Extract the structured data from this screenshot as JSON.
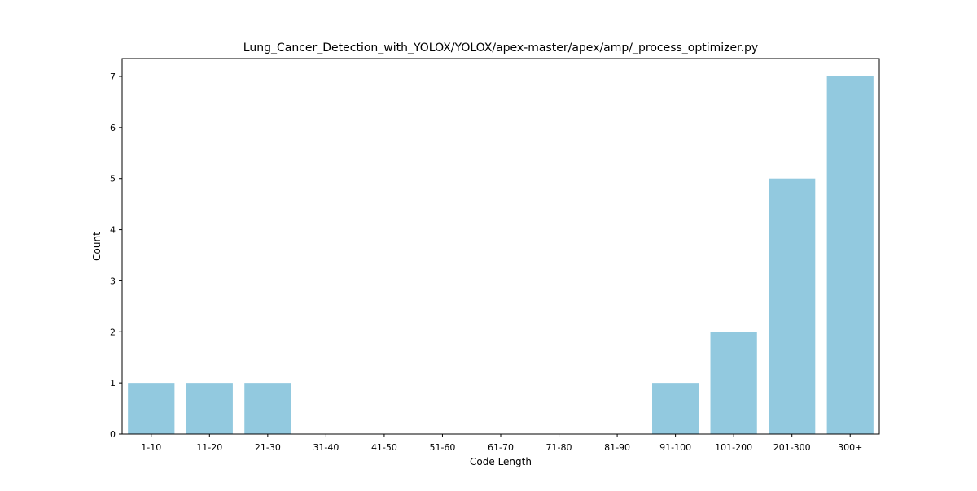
{
  "chart_data": {
    "type": "bar",
    "title": "Lung_Cancer_Detection_with_YOLOX/YOLOX/apex-master/apex/amp/_process_optimizer.py",
    "xlabel": "Code Length",
    "ylabel": "Count",
    "categories": [
      "1-10",
      "11-20",
      "21-30",
      "31-40",
      "41-50",
      "51-60",
      "61-70",
      "71-80",
      "81-90",
      "91-100",
      "101-200",
      "201-300",
      "300+"
    ],
    "values": [
      1,
      1,
      1,
      0,
      0,
      0,
      0,
      0,
      0,
      1,
      2,
      5,
      7
    ],
    "ylim": [
      0,
      7.35
    ],
    "yticks": [
      0,
      1,
      2,
      3,
      4,
      5,
      6,
      7
    ],
    "grid": false,
    "legend": "none",
    "bar_color": "#92c9df"
  }
}
